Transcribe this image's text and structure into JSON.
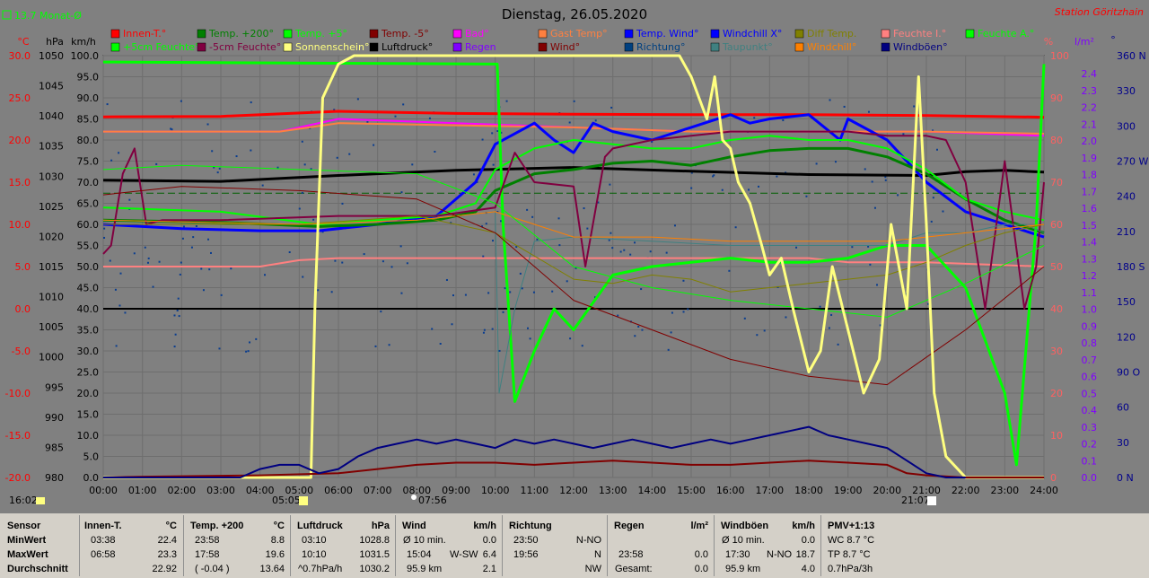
{
  "header": {
    "title": "Dienstag, 26.05.2020",
    "station": "Station Göritzhain",
    "avg_label": "13.7 Monat-Ø",
    "time_start": "16:02",
    "time_end": "21:07",
    "sunrise": "05:05",
    "noon": "07:56"
  },
  "legend": [
    {
      "label": "Innen-T.°",
      "color": "#ff0000"
    },
    {
      "label": "Temp. +200°",
      "color": "#008000"
    },
    {
      "label": "Temp. +5°",
      "color": "#00ff00"
    },
    {
      "label": "Temp. -5°",
      "color": "#800000"
    },
    {
      "label": "Bad°",
      "color": "#ff00ff"
    },
    {
      "label": "Gast Temp°",
      "color": "#ff8040"
    },
    {
      "label": "Temp. Wind°",
      "color": "#0000ff"
    },
    {
      "label": "Windchill X°",
      "color": "#0000ff"
    },
    {
      "label": "Diff Temp.",
      "color": "#808000"
    },
    {
      "label": "Feuchte I.°",
      "color": "#ff8080"
    },
    {
      "label": "Feuchte A.°",
      "color": "#00ff00"
    },
    {
      "label": "+5cm Feuchte°",
      "color": "#00ff00"
    },
    {
      "label": "-5cm Feuchte°",
      "color": "#800040"
    },
    {
      "label": "Sonnenschein°",
      "color": "#ffff80"
    },
    {
      "label": "Luftdruck°",
      "color": "#000000"
    },
    {
      "label": "Regen",
      "color": "#8000ff"
    },
    {
      "label": "Wind°",
      "color": "#800000"
    },
    {
      "label": "Richtung°",
      "color": "#004080"
    },
    {
      "label": "Taupunkt°",
      "color": "#408080"
    },
    {
      "label": "Windchill°",
      "color": "#ff8000"
    },
    {
      "label": "Windböen°",
      "color": "#000080"
    }
  ],
  "axes": {
    "temp_unit": "°C",
    "hpa_unit": "hPa",
    "kmh_unit": "km/h",
    "pct_unit": "%",
    "rain_unit": "l/m²",
    "dir_unit": "°",
    "temp_ticks": [
      "30.0",
      "25.0",
      "20.0",
      "15.0",
      "10.0",
      "5.0",
      "0.0",
      "-5.0",
      "-10.0",
      "-15.0",
      "-20.0"
    ],
    "hpa_ticks": [
      "1050",
      "1045",
      "1040",
      "1035",
      "1030",
      "1025",
      "1020",
      "1015",
      "1010",
      "1005",
      "1000",
      "995",
      "990",
      "985",
      "980"
    ],
    "kmh_ticks": [
      "100.0",
      "95.0",
      "90.0",
      "85.0",
      "80.0",
      "75.0",
      "70.0",
      "65.0",
      "60.0",
      "55.0",
      "50.0",
      "45.0",
      "40.0",
      "35.0",
      "30.0",
      "25.0",
      "20.0",
      "15.0",
      "10.0",
      "5.0",
      "0.0"
    ],
    "pct_ticks": [
      "100",
      "90",
      "80",
      "70",
      "60",
      "50",
      "40",
      "30",
      "20",
      "10",
      "0"
    ],
    "rain_ticks": [
      "2.4",
      "2.3",
      "2.2",
      "2.1",
      "2.0",
      "1.9",
      "1.8",
      "1.7",
      "1.6",
      "1.5",
      "1.4",
      "1.3",
      "1.2",
      "1.1",
      "1.0",
      "0.9",
      "0.8",
      "0.7",
      "0.6",
      "0.5",
      "0.4",
      "0.3",
      "0.2",
      "0.1",
      "0.0"
    ],
    "dir_ticks": [
      "360 N",
      "330",
      "300",
      "270 W",
      "240",
      "210",
      "180 S",
      "150",
      "120",
      "90 O",
      "60",
      "30",
      "0 N"
    ],
    "x_ticks": [
      "00:00",
      "01:00",
      "02:00",
      "03:00",
      "04:00",
      "05:00",
      "06:00",
      "07:00",
      "08:00",
      "09:00",
      "10:00",
      "11:00",
      "12:00",
      "13:00",
      "14:00",
      "15:00",
      "16:00",
      "17:00",
      "18:00",
      "19:00",
      "20:00",
      "21:00",
      "22:00",
      "23:00",
      "24:00"
    ]
  },
  "chart_data": {
    "type": "line",
    "title": "Dienstag, 26.05.2020",
    "x_range": [
      0,
      24
    ],
    "y_range_kmh": [
      0,
      100
    ],
    "series": [
      {
        "name": "Innen-T.°",
        "color": "#ff0000",
        "width": 3,
        "x": [
          0,
          3,
          6,
          9,
          12,
          15,
          18,
          21,
          24
        ],
        "y": [
          85.5,
          85.6,
          86.8,
          86.3,
          86.1,
          86.0,
          86.0,
          85.8,
          85.4
        ]
      },
      {
        "name": "Bad°",
        "color": "#ff00ff",
        "width": 2,
        "x": [
          0,
          4.5,
          6,
          9,
          12,
          15,
          18,
          21,
          24
        ],
        "y": [
          82,
          82,
          85,
          84,
          83,
          82,
          82,
          82,
          81
        ]
      },
      {
        "name": "Gast Temp°",
        "color": "#ff8040",
        "width": 2,
        "x": [
          0,
          4.5,
          6,
          9,
          12,
          15,
          18,
          21,
          24
        ],
        "y": [
          82,
          82,
          84,
          83.5,
          83,
          82,
          82,
          82,
          81.5
        ]
      },
      {
        "name": "Luftdruck°",
        "color": "#000000",
        "width": 3,
        "x": [
          0,
          3,
          6,
          9,
          12,
          15,
          18,
          21,
          22,
          23,
          24
        ],
        "y": [
          70.5,
          70.2,
          71.6,
          72.8,
          73.5,
          72.6,
          71.8,
          71.6,
          72.5,
          72.8,
          72.4
        ]
      },
      {
        "name": "Feuchte I.°",
        "color": "#ff8080",
        "width": 2,
        "x": [
          0,
          3,
          4,
          5,
          6,
          9,
          12,
          15,
          18,
          19,
          21,
          24
        ],
        "y": [
          50,
          50,
          50,
          51.5,
          52,
          52,
          52,
          52,
          52,
          51,
          51,
          50
        ]
      },
      {
        "name": "Temp. Wind°",
        "color": "#0000ff",
        "width": 3,
        "x": [
          0,
          2,
          4,
          5.5,
          7,
          8.5,
          9.5,
          10,
          11,
          11.5,
          12,
          12.5,
          13,
          14,
          15,
          16,
          16.5,
          17,
          18,
          18.8,
          19,
          20,
          21,
          22,
          23,
          24
        ],
        "y": [
          60,
          59,
          58.5,
          58.5,
          60,
          62,
          70,
          79,
          84,
          80,
          77,
          84,
          82,
          80,
          83,
          86,
          84,
          85,
          86,
          80,
          85,
          80,
          70,
          63,
          60,
          57
        ]
      },
      {
        "name": "Temp. +200°",
        "color": "#008000",
        "width": 3,
        "x": [
          0,
          3,
          5.5,
          7,
          8.5,
          9.5,
          10,
          11,
          12,
          13,
          14,
          15,
          16,
          17,
          18,
          19,
          20,
          21,
          22,
          23,
          24
        ],
        "y": [
          61,
          60.5,
          59.5,
          60,
          61,
          63,
          68,
          72,
          73,
          74.5,
          75,
          74,
          76,
          77.5,
          78,
          78,
          76,
          72,
          66,
          61,
          58
        ]
      },
      {
        "name": "Temp. +5°",
        "color": "#00ff00",
        "width": 2,
        "x": [
          0,
          3,
          5.5,
          7,
          8.5,
          9.5,
          10,
          11,
          12,
          13,
          14,
          15,
          16,
          17,
          18,
          19,
          20,
          21,
          22,
          23,
          24
        ],
        "y": [
          64,
          63,
          60,
          61,
          62,
          65,
          73,
          78,
          80,
          79,
          78,
          78,
          80,
          81,
          80,
          80,
          78,
          73,
          66,
          63,
          61
        ]
      },
      {
        "name": "+5cm Feuchte°",
        "color": "#00ff00",
        "width": 3,
        "x": [
          0,
          10,
          10.05,
          10.2,
          10.5,
          11,
          11.5,
          12,
          13,
          14,
          15,
          16,
          17,
          18,
          19,
          20,
          21,
          22,
          23,
          23.3,
          23.8,
          24
        ],
        "y": [
          98.5,
          98,
          98,
          60,
          18,
          30,
          40,
          35,
          48,
          50,
          51,
          52,
          51,
          51,
          52,
          55,
          55,
          45,
          20,
          3,
          60,
          98
        ]
      },
      {
        "name": "-5cm Feuchte°",
        "color": "#800040",
        "width": 2,
        "x": [
          0,
          0.2,
          0.5,
          0.8,
          1.1,
          1.5,
          3,
          6,
          7,
          8.5,
          10,
          10.5,
          11,
          12,
          12.3,
          12.8,
          13,
          14,
          15,
          16,
          17,
          18,
          19,
          20,
          21,
          21.5,
          22,
          22.5,
          23,
          23.5,
          23.8,
          24
        ],
        "y": [
          53,
          55,
          72,
          78,
          60,
          61,
          61,
          62,
          62,
          62,
          64,
          77,
          70,
          69,
          50,
          76,
          78,
          80,
          81,
          82,
          82,
          82,
          82,
          81,
          81,
          80,
          70,
          40,
          75,
          40,
          50,
          70
        ]
      },
      {
        "name": "Taupunkt°",
        "color": "#408080",
        "width": 1,
        "x": [
          0,
          5,
          8,
          10,
          10.1,
          10.5,
          11,
          12,
          14,
          16,
          18,
          20,
          21,
          22,
          23,
          23.5,
          24
        ],
        "y": [
          61,
          60,
          61,
          63,
          20,
          40,
          56,
          57,
          56,
          55,
          55,
          55,
          58,
          58,
          60,
          60,
          58
        ]
      },
      {
        "name": "Diff Temp.",
        "color": "#808000",
        "width": 1,
        "x": [
          0,
          5,
          8,
          10,
          12,
          13,
          14,
          15,
          16,
          17,
          18,
          19,
          20,
          21,
          22,
          23,
          24
        ],
        "y": [
          60,
          60,
          62,
          58,
          47,
          46,
          48,
          47,
          44,
          45,
          46,
          47,
          48,
          51,
          55,
          58,
          60
        ]
      },
      {
        "name": "Windchill°",
        "color": "#ff8000",
        "width": 1,
        "x": [
          0,
          5,
          8,
          10,
          12,
          14,
          16,
          18,
          20,
          22,
          24
        ],
        "y": [
          61,
          60,
          61,
          63,
          57,
          57,
          56,
          56,
          56,
          58,
          60
        ]
      },
      {
        "name": "Feuchte A.°",
        "color": "#00ff00",
        "width": 1,
        "x": [
          0,
          2,
          5,
          8,
          10,
          12,
          14,
          16,
          18,
          20,
          22,
          24
        ],
        "y": [
          73,
          74,
          73,
          72,
          65,
          50,
          45,
          42,
          40,
          38,
          46,
          55
        ]
      },
      {
        "name": "Taupunkt°",
        "color": "#800000",
        "width": 1,
        "x": [
          0,
          2,
          5,
          8,
          10,
          12,
          14,
          16,
          18,
          20,
          22,
          24
        ],
        "y": [
          67,
          69,
          68,
          66,
          58,
          42,
          35,
          28,
          24,
          22,
          35,
          50
        ]
      },
      {
        "name": "Sonnenschein°",
        "color": "#ffff80",
        "width": 3,
        "x": [
          0,
          5.3,
          5.4,
          5.6,
          6,
          6.4,
          14.7,
          15,
          15.2,
          15.4,
          15.6,
          15.8,
          16,
          16.2,
          16.5,
          16.8,
          17,
          17.3,
          17.6,
          18,
          18.3,
          18.6,
          19,
          19.4,
          19.8,
          20.1,
          20.5,
          20.8,
          21,
          21.2,
          21.5,
          22,
          24
        ],
        "y": [
          0,
          0,
          40,
          90,
          98,
          100,
          100,
          95,
          90,
          85,
          95,
          80,
          78,
          70,
          65,
          55,
          48,
          52,
          40,
          25,
          30,
          50,
          35,
          20,
          28,
          60,
          40,
          95,
          60,
          20,
          5,
          0,
          0
        ]
      },
      {
        "name": "Wind°",
        "color": "#800000",
        "width": 2,
        "x": [
          0,
          1,
          4,
          6,
          7,
          8,
          9,
          10,
          11,
          12,
          13,
          14,
          15,
          16,
          17,
          18,
          19,
          20,
          20.5,
          21,
          22,
          24
        ],
        "y": [
          0,
          0.2,
          0.5,
          1,
          2,
          3,
          3.5,
          3.5,
          3,
          3.5,
          4,
          3.5,
          3,
          3,
          3.5,
          4,
          3.5,
          3,
          1,
          0.5,
          0,
          0
        ]
      },
      {
        "name": "Windböen°",
        "color": "#000080",
        "width": 2,
        "x": [
          0,
          3.5,
          4,
          4.5,
          5,
          5.5,
          6,
          6.5,
          7,
          7.5,
          8,
          8.5,
          9,
          9.5,
          10,
          10.5,
          11,
          11.5,
          12,
          12.5,
          13,
          13.5,
          14,
          14.5,
          15,
          15.5,
          16,
          16.5,
          17,
          17.5,
          18,
          18.5,
          19,
          19.5,
          20,
          20.5,
          21,
          21.5,
          22
        ],
        "y": [
          0,
          0,
          2,
          3,
          3,
          1,
          2,
          5,
          7,
          8,
          9,
          8,
          9,
          8,
          7,
          9,
          8,
          9,
          8,
          7,
          8,
          9,
          8,
          7,
          8,
          9,
          8,
          9,
          10,
          11,
          12,
          10,
          9,
          8,
          7,
          4,
          1,
          0,
          0
        ]
      },
      {
        "name": "Richtung°",
        "color": "#004080",
        "width": 0,
        "x": [],
        "y": []
      }
    ],
    "reference_lines": [
      {
        "name": "Taupunkt Grenze",
        "y": 40,
        "color": "#000000"
      },
      {
        "name": "Monat-Ø",
        "y": 67.4,
        "color": "#006000",
        "dash": true
      }
    ]
  },
  "stats": {
    "sensor": {
      "h": "Sensor",
      "r1": "MinWert",
      "r2": "MaxWert",
      "r3": "Durchschnitt"
    },
    "innen": {
      "h": "Innen-T.",
      "u": "°C",
      "t1": "03:38",
      "v1": "22.4",
      "t2": "06:58",
      "v2": "23.3",
      "v3": "22.92"
    },
    "temp": {
      "h": "Temp. +200",
      "u": "°C",
      "t1": "23:58",
      "v1": "8.8",
      "t2": "17:58",
      "v2": "19.6",
      "t3": "( -0.04 )",
      "v3": "13.64"
    },
    "luft": {
      "h": "Luftdruck",
      "u": "hPa",
      "t1": "03:10",
      "v1": "1028.8",
      "t2": "10:10",
      "v2": "1031.5",
      "t3": "^0.7hPa/h",
      "v3": "1030.2"
    },
    "wind": {
      "h": "Wind",
      "u": "km/h",
      "t1": "Ø 10 min.",
      "v1": "0.0",
      "t2": "15:04",
      "m2": "W-SW",
      "v2": "6.4",
      "t3": "95.9 km",
      "v3": "2.1"
    },
    "richt": {
      "h": "Richtung",
      "t1": "23:50",
      "v1": "N-NO",
      "t2": "19:56",
      "v2": "N",
      "v3": "NW"
    },
    "regen": {
      "h": "Regen",
      "u": "l/m²",
      "t2": "23:58",
      "v2": "0.0",
      "t3": "Gesamt:",
      "v3": "0.0"
    },
    "boen": {
      "h": "Windböen",
      "u": "km/h",
      "t1": "Ø 10 min.",
      "v1": "0.0",
      "t2": "17:30",
      "m2": "N-NO",
      "v2": "18.7",
      "t3": "95.9 km",
      "v3": "4.0"
    },
    "pmv": {
      "h": "PMV+1:13",
      "r1": "WC 8.7 °C",
      "r2": "TP 8.7 °C",
      "r3": "0.7hPa/3h"
    }
  }
}
